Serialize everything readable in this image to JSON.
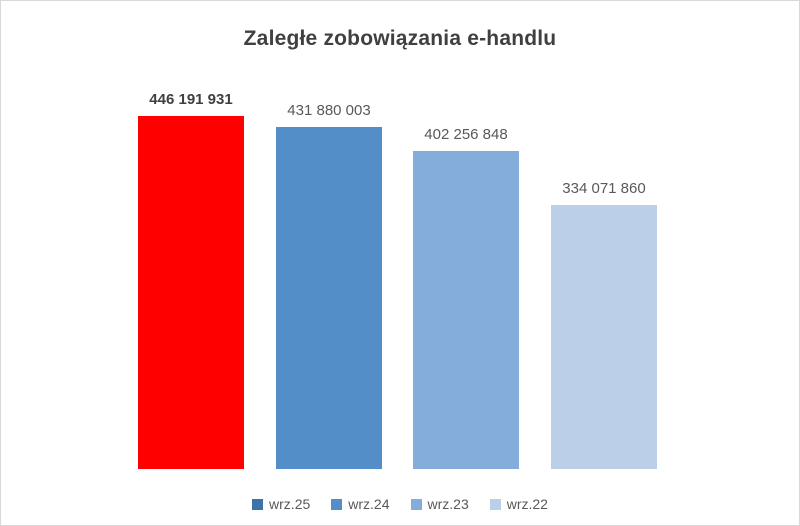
{
  "window": {
    "background": "#FFFFFF",
    "border_color": "#D9D9D9"
  },
  "chart_data": {
    "type": "bar",
    "title": "Zaległe zobowiązania e-handlu",
    "categories": [
      "wrz.25",
      "wrz.24",
      "wrz.23",
      "wrz.22"
    ],
    "values": [
      446191931,
      431880003,
      402256848,
      334071860
    ],
    "data_labels": [
      "446 191 931",
      "431 880 003",
      "402 256 848",
      "334 071 860"
    ],
    "bar_colors": [
      "#FF0000",
      "#548EC8",
      "#85ADDB",
      "#BCCFE8"
    ],
    "legend_swatch_colors": [
      "#3C73A8",
      "#548EC8",
      "#85ADDB",
      "#BCCFE8"
    ],
    "data_label_bold": [
      true,
      false,
      false,
      false
    ],
    "title_color": "#404040",
    "data_label_color": "#595959",
    "legend_text_color": "#595959",
    "legend_position": "bottom",
    "grid": false,
    "axes_visible": false,
    "ylim": [
      0,
      446191931
    ]
  }
}
